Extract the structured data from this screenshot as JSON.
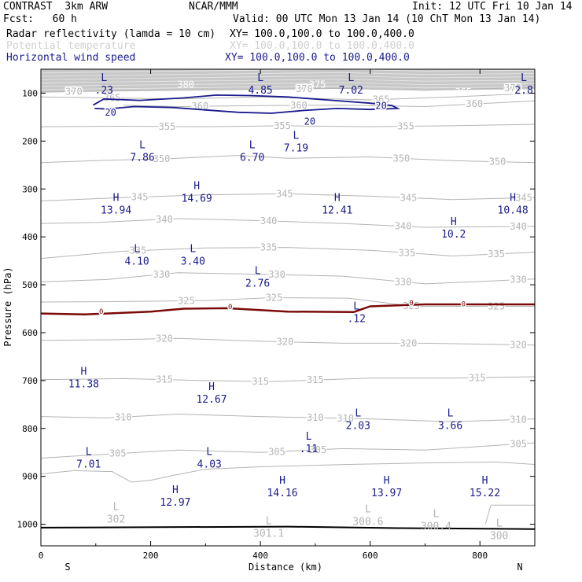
{
  "header": {
    "model": "CONTRAST  3km ARW",
    "org": "NCAR/MMM",
    "init": "Init: 12 UTC Fri 10 Jan 14",
    "fcst": "Fcst:   60 h",
    "valid": "Valid: 00 UTC Mon 13 Jan 14 (10 ChT Mon 13 Jan 14)",
    "fields": [
      {
        "name": "Radar reflectivity (lamda = 10 cm)",
        "xy": "XY= 100.0,100.0 to 100.0,400.0",
        "color": "#000000"
      },
      {
        "name": "Potential temperature",
        "xy": "XY= 100.0,100.0 to 100.0,400.0",
        "color": "#c8c8c8"
      },
      {
        "name": "Horizontal wind speed",
        "xy": "XY= 100.0,100.0 to 100.0,400.0",
        "color": "#1a1a8c"
      }
    ]
  },
  "chart_data": {
    "type": "cross-section",
    "xlabel": "Distance (km)",
    "ylabel": "Pressure (hPa)",
    "xlim": [
      0,
      900
    ],
    "ylim": [
      1045,
      50
    ],
    "xticks": [
      0,
      200,
      400,
      600,
      800
    ],
    "yticks": [
      100,
      200,
      300,
      400,
      500,
      600,
      700,
      800,
      900,
      1000
    ],
    "x_end_labels": {
      "left": "S",
      "right": "N"
    },
    "theta_contours": [
      {
        "label": "370",
        "points": [
          [
            0,
            98
          ],
          [
            100,
            96
          ],
          [
            250,
            94
          ],
          [
            400,
            92
          ],
          [
            550,
            90
          ],
          [
            700,
            94
          ],
          [
            900,
            88
          ]
        ],
        "labels_at": [
          60,
          480,
          860
        ]
      },
      {
        "label": "365",
        "points": [
          [
            0,
            108
          ],
          [
            120,
            110
          ],
          [
            250,
            112
          ],
          [
            400,
            108
          ],
          [
            600,
            114
          ],
          [
            750,
            108
          ],
          [
            900,
            100
          ]
        ],
        "labels_at": [
          130,
          620
        ]
      },
      {
        "label": "360",
        "points": [
          [
            150,
            125
          ],
          [
            250,
            128
          ],
          [
            400,
            126
          ],
          [
            550,
            125
          ],
          [
            700,
            128
          ],
          [
            900,
            116
          ]
        ],
        "labels_at": [
          290,
          470,
          790
        ]
      },
      {
        "label": "355",
        "points": [
          [
            0,
            170
          ],
          [
            150,
            169
          ],
          [
            300,
            170
          ],
          [
            450,
            168
          ],
          [
            600,
            170
          ],
          [
            750,
            168
          ],
          [
            900,
            165
          ]
        ],
        "labels_at": [
          230,
          440,
          665
        ]
      },
      {
        "label": "350",
        "points": [
          [
            0,
            245
          ],
          [
            120,
            240
          ],
          [
            230,
            237
          ],
          [
            360,
            230
          ],
          [
            450,
            236
          ],
          [
            600,
            233
          ],
          [
            750,
            241
          ],
          [
            900,
            245
          ]
        ],
        "labels_at": [
          220,
          657,
          832
        ]
      },
      {
        "label": "345",
        "points": [
          [
            0,
            325
          ],
          [
            150,
            318
          ],
          [
            300,
            312
          ],
          [
            450,
            310
          ],
          [
            600,
            315
          ],
          [
            750,
            322
          ],
          [
            900,
            318
          ]
        ],
        "labels_at": [
          180,
          444,
          670,
          880
        ]
      },
      {
        "label": "340",
        "points": [
          [
            0,
            372
          ],
          [
            100,
            370
          ],
          [
            250,
            362
          ],
          [
            400,
            366
          ],
          [
            550,
            372
          ],
          [
            700,
            380
          ],
          [
            900,
            378
          ]
        ],
        "labels_at": [
          225,
          415,
          660,
          870
        ]
      },
      {
        "label": "335",
        "points": [
          [
            0,
            445
          ],
          [
            150,
            430
          ],
          [
            300,
            423
          ],
          [
            450,
            422
          ],
          [
            600,
            428
          ],
          [
            750,
            440
          ],
          [
            900,
            432
          ]
        ],
        "labels_at": [
          177,
          415,
          667,
          830
        ]
      },
      {
        "label": "330",
        "points": [
          [
            0,
            494
          ],
          [
            120,
            489
          ],
          [
            250,
            475
          ],
          [
            400,
            478
          ],
          [
            550,
            482
          ],
          [
            700,
            498
          ],
          [
            900,
            488
          ]
        ],
        "labels_at": [
          220,
          430,
          660,
          870
        ]
      },
      {
        "label": "325",
        "points": [
          [
            0,
            536
          ],
          [
            150,
            535
          ],
          [
            300,
            533
          ],
          [
            420,
            527
          ],
          [
            560,
            528
          ],
          [
            680,
            545
          ],
          [
            900,
            545
          ]
        ],
        "labels_at": [
          265,
          425,
          675,
          830
        ]
      },
      {
        "label": "320",
        "points": [
          [
            0,
            616
          ],
          [
            120,
            615
          ],
          [
            250,
            612
          ],
          [
            400,
            618
          ],
          [
            550,
            622
          ],
          [
            700,
            622
          ],
          [
            900,
            626
          ]
        ],
        "labels_at": [
          225,
          445,
          670,
          870
        ]
      },
      {
        "label": "315",
        "points": [
          [
            0,
            698
          ],
          [
            150,
            696
          ],
          [
            300,
            700
          ],
          [
            420,
            702
          ],
          [
            600,
            695
          ],
          [
            750,
            695
          ],
          [
            900,
            692
          ]
        ],
        "labels_at": [
          225,
          400,
          500,
          795
        ]
      },
      {
        "label": "310",
        "points": [
          [
            0,
            775
          ],
          [
            120,
            778
          ],
          [
            250,
            770
          ],
          [
            400,
            775
          ],
          [
            600,
            780
          ],
          [
            750,
            786
          ],
          [
            900,
            780
          ]
        ],
        "labels_at": [
          150,
          500,
          555,
          870
        ]
      },
      {
        "label": "305",
        "points": [
          [
            0,
            862
          ],
          [
            100,
            855
          ],
          [
            250,
            845
          ],
          [
            400,
            850
          ],
          [
            550,
            842
          ],
          [
            700,
            845
          ],
          [
            900,
            830
          ]
        ],
        "labels_at": [
          140,
          430,
          505,
          870
        ]
      }
    ],
    "theta_labels_extra": [
      {
        "text": "380",
        "x": 264,
        "p": 82
      },
      {
        "text": "375",
        "x": 504,
        "p": 82
      },
      {
        "text": "365",
        "x": 770,
        "p": 98
      },
      {
        "text": "360",
        "x": 870,
        "p": 105
      }
    ],
    "wind_contours": [
      {
        "label": "20",
        "points": [
          [
            95,
            125
          ],
          [
            115,
            112
          ],
          [
            180,
            115
          ],
          [
            260,
            110
          ],
          [
            320,
            104
          ],
          [
            380,
            105
          ],
          [
            450,
            108
          ],
          [
            520,
            114
          ],
          [
            600,
            121
          ],
          [
            640,
            126
          ],
          [
            650,
            132
          ],
          [
            600,
            134
          ],
          [
            540,
            132
          ],
          [
            480,
            136
          ],
          [
            420,
            142
          ],
          [
            360,
            140
          ],
          [
            300,
            135
          ],
          [
            240,
            130
          ],
          [
            170,
            128
          ],
          [
            120,
            133
          ],
          [
            98,
            132
          ]
        ],
        "labels_at": [
          [
            127,
            140
          ],
          [
            620,
            126
          ],
          [
            490,
            159
          ]
        ]
      }
    ],
    "freezing_line": {
      "label": "0",
      "points": [
        [
          0,
          560
        ],
        [
          80,
          562
        ],
        [
          200,
          556
        ],
        [
          260,
          550
        ],
        [
          340,
          549
        ],
        [
          450,
          556
        ],
        [
          570,
          557
        ],
        [
          600,
          545
        ],
        [
          700,
          541
        ],
        [
          900,
          541
        ]
      ],
      "labels_at": [
        [
          110,
          556
        ],
        [
          345,
          546
        ],
        [
          675,
          538
        ],
        [
          770,
          540
        ]
      ]
    },
    "ground": {
      "points": [
        [
          0,
          1007
        ],
        [
          450,
          1005
        ],
        [
          650,
          1008
        ],
        [
          900,
          1010
        ]
      ]
    },
    "terrain_lines": [
      {
        "points": [
          [
            0,
            895
          ],
          [
            60,
            888
          ],
          [
            130,
            890
          ],
          [
            165,
            912
          ],
          [
            200,
            908
          ],
          [
            245,
            897
          ],
          [
            300,
            885
          ],
          [
            400,
            880
          ],
          [
            560,
            875
          ],
          [
            700,
            872
          ],
          [
            830,
            870
          ],
          [
            900,
            875
          ]
        ]
      },
      {
        "points": [
          [
            810,
            1000
          ],
          [
            820,
            960
          ],
          [
            900,
            960
          ]
        ]
      }
    ],
    "extrema": [
      {
        "type": "L",
        "value": ".23",
        "x": 115,
        "p": 75
      },
      {
        "type": "L",
        "value": "4.85",
        "x": 400,
        "p": 75
      },
      {
        "type": "L",
        "value": "7.02",
        "x": 565,
        "p": 75
      },
      {
        "type": "L",
        "value": "2.8",
        "x": 880,
        "p": 75
      },
      {
        "type": "L",
        "value": "7.86",
        "x": 185,
        "p": 215
      },
      {
        "type": "L",
        "value": "6.70",
        "x": 385,
        "p": 215
      },
      {
        "type": "L",
        "value": "7.19",
        "x": 465,
        "p": 195
      },
      {
        "type": "H",
        "value": "14.69",
        "x": 284,
        "p": 300
      },
      {
        "type": "H",
        "value": "13.94",
        "x": 137,
        "p": 325
      },
      {
        "type": "H",
        "value": "12.41",
        "x": 540,
        "p": 325
      },
      {
        "type": "H",
        "value": "10.2",
        "x": 752,
        "p": 375
      },
      {
        "type": "H",
        "value": "10.48",
        "x": 860,
        "p": 325
      },
      {
        "type": "L",
        "value": "4.10",
        "x": 175,
        "p": 432
      },
      {
        "type": "L",
        "value": "3.40",
        "x": 277,
        "p": 432
      },
      {
        "type": "L",
        "value": "2.76",
        "x": 395,
        "p": 478
      },
      {
        "type": "L",
        "value": ".12",
        "x": 575,
        "p": 552
      },
      {
        "type": "H",
        "value": "11.38",
        "x": 78,
        "p": 688
      },
      {
        "type": "H",
        "value": "12.67",
        "x": 311,
        "p": 720
      },
      {
        "type": "L",
        "value": "2.03",
        "x": 578,
        "p": 775
      },
      {
        "type": "L",
        "value": "3.66",
        "x": 746,
        "p": 775
      },
      {
        "type": "L",
        "value": ".11",
        "x": 488,
        "p": 823
      },
      {
        "type": "L",
        "value": "7.01",
        "x": 87,
        "p": 855
      },
      {
        "type": "L",
        "value": "4.03",
        "x": 307,
        "p": 855
      },
      {
        "type": "H",
        "value": "14.16",
        "x": 440,
        "p": 915
      },
      {
        "type": "H",
        "value": "13.97",
        "x": 630,
        "p": 915
      },
      {
        "type": "H",
        "value": "15.22",
        "x": 809,
        "p": 915
      },
      {
        "type": "H",
        "value": "12.97",
        "x": 245,
        "p": 935
      }
    ],
    "theta_extrema": [
      {
        "type": "L",
        "value": "302",
        "x": 137,
        "p": 970
      },
      {
        "type": "L",
        "value": "301.1",
        "x": 415,
        "p": 1000
      },
      {
        "type": "L",
        "value": "300.6",
        "x": 596,
        "p": 975
      },
      {
        "type": "L",
        "value": "300.4",
        "x": 720,
        "p": 985
      },
      {
        "type": "L",
        "value": "300",
        "x": 835,
        "p": 1005
      }
    ]
  }
}
